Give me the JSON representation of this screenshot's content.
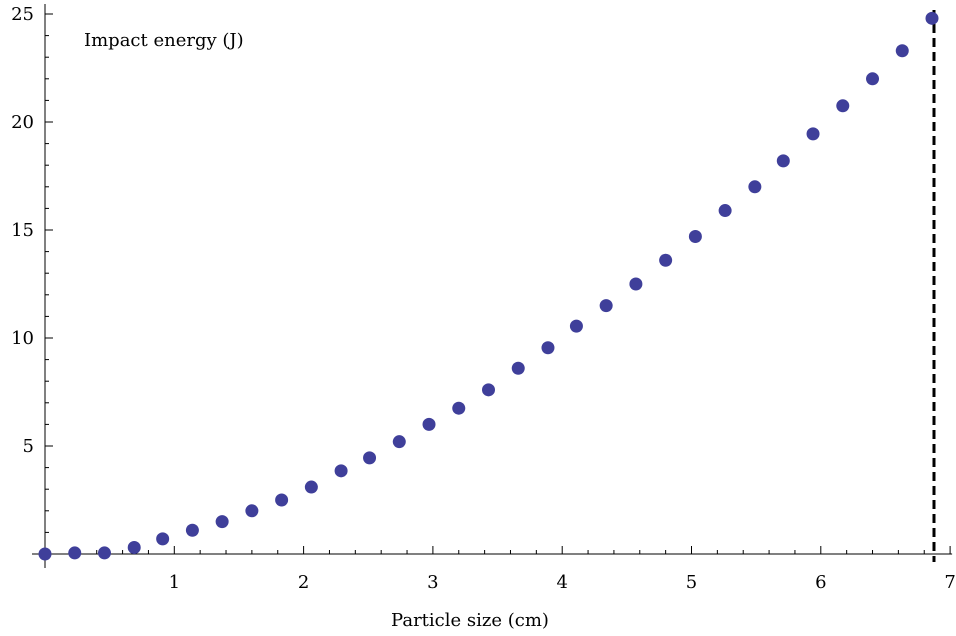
{
  "chart_data": {
    "type": "scatter",
    "title": "",
    "xlabel": "Particle size (cm)",
    "ylabel": "Impact energy (J)",
    "xlim": [
      0,
      7
    ],
    "ylim": [
      0,
      25
    ],
    "x_ticks": [
      1,
      2,
      3,
      4,
      5,
      6,
      7
    ],
    "y_ticks": [
      5,
      10,
      15,
      20,
      25
    ],
    "grid": false,
    "marker_color": "#3f3f9a",
    "reference_line": {
      "x": 6.86,
      "style": "dashed",
      "color": "#000000"
    },
    "series": [
      {
        "x": [
          0.0,
          0.23,
          0.46,
          0.69,
          0.91,
          1.14,
          1.37,
          1.6,
          1.83,
          2.06,
          2.29,
          2.51,
          2.74,
          2.97,
          3.2,
          3.43,
          3.66,
          3.89,
          4.11,
          4.34,
          4.57,
          4.8,
          5.03,
          5.26,
          5.49,
          5.71,
          5.94,
          6.17,
          6.4,
          6.63,
          6.86
        ],
        "y": [
          0.0,
          0.05,
          0.05,
          0.3,
          0.7,
          1.1,
          1.5,
          2.0,
          2.5,
          3.1,
          3.85,
          4.45,
          5.2,
          6.0,
          6.75,
          7.6,
          8.6,
          9.55,
          10.55,
          11.5,
          12.5,
          13.6,
          14.7,
          15.9,
          17.0,
          18.2,
          19.45,
          20.75,
          22.0,
          23.3,
          24.8
        ]
      }
    ]
  }
}
